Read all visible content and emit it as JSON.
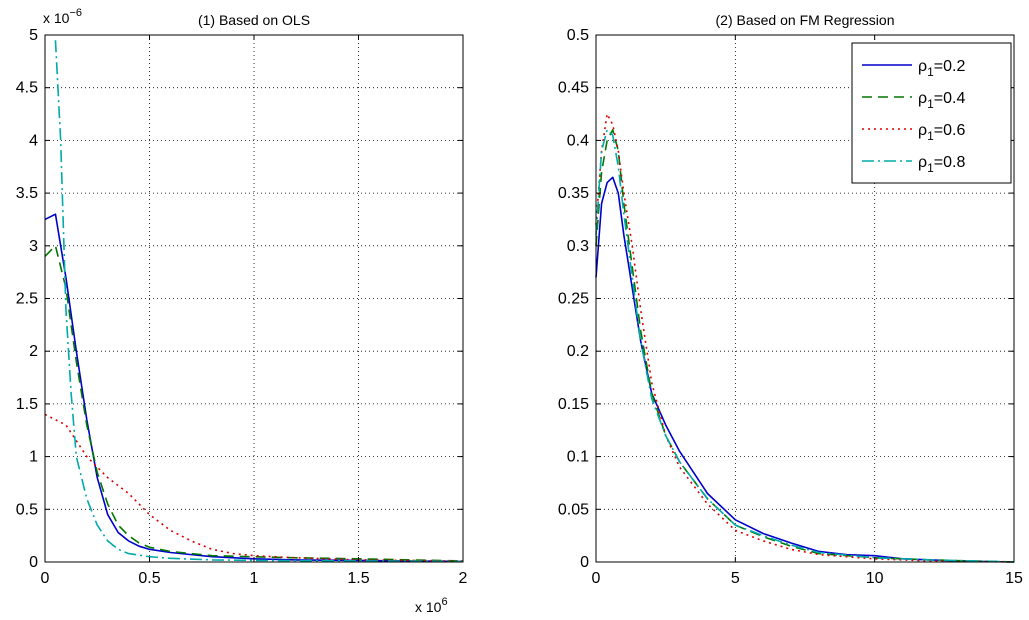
{
  "chart_data": [
    {
      "type": "line",
      "title": "(1) Based on OLS",
      "xlim": [
        0,
        2000000
      ],
      "ylim": [
        0,
        5e-06
      ],
      "x_ticks": [
        0,
        500000,
        1000000,
        1500000,
        2000000
      ],
      "x_tick_labels": [
        "0",
        "0.5",
        "1",
        "1.5",
        "2"
      ],
      "y_ticks": [
        0,
        5e-07,
        1e-06,
        1.5e-06,
        2e-06,
        2.5e-06,
        3e-06,
        3.5e-06,
        4e-06,
        4.5e-06,
        5e-06
      ],
      "y_tick_labels": [
        "0",
        "0.5",
        "1",
        "1.5",
        "2",
        "2.5",
        "3",
        "3.5",
        "4",
        "4.5",
        "5"
      ],
      "x_multiplier": {
        "base": "x 10",
        "exp": "6"
      },
      "y_multiplier": {
        "base": "x 10",
        "exp": "−6"
      },
      "grid": true,
      "series": [
        {
          "label_parts": [
            "ρ",
            "1",
            "=0.2"
          ],
          "color": "#0000cc",
          "dash": "",
          "x": [
            0,
            50000,
            100000,
            150000,
            200000,
            250000,
            300000,
            350000,
            400000,
            450000,
            500000,
            600000,
            700000,
            800000,
            1000000,
            1200000,
            1500000,
            2000000
          ],
          "y": [
            3.25e-06,
            3.3e-06,
            2.7e-06,
            2e-06,
            1.35e-06,
            8e-07,
            4.5e-07,
            2.8e-07,
            2e-07,
            1.5e-07,
            1.2e-07,
            9e-08,
            7e-08,
            5e-08,
            3e-08,
            2e-08,
            1.5e-08,
            5e-09
          ]
        },
        {
          "label_parts": [
            "ρ",
            "1",
            "=0.4"
          ],
          "color": "#007700",
          "dash": "10,6",
          "x": [
            0,
            50000,
            100000,
            150000,
            200000,
            250000,
            300000,
            350000,
            400000,
            450000,
            500000,
            600000,
            700000,
            800000,
            1000000,
            1200000,
            1500000,
            2000000
          ],
          "y": [
            2.9e-06,
            3e-06,
            2.6e-06,
            1.9e-06,
            1.3e-06,
            8.5e-07,
            5.5e-07,
            3.5e-07,
            2.5e-07,
            1.8e-07,
            1.4e-07,
            1e-07,
            8e-08,
            6e-08,
            5e-08,
            4e-08,
            3e-08,
            1e-08
          ]
        },
        {
          "label_parts": [
            "ρ",
            "1",
            "=0.6"
          ],
          "color": "#dd0000",
          "dash": "2,4",
          "x": [
            0,
            100000,
            150000,
            200000,
            300000,
            400000,
            500000,
            600000,
            700000,
            800000,
            900000,
            1000000,
            1200000,
            1500000,
            2000000
          ],
          "y": [
            1.4e-06,
            1.3e-06,
            1.15e-06,
            1e-06,
            8e-07,
            6.5e-07,
            4.5e-07,
            3e-07,
            2e-07,
            1.2e-07,
            8e-08,
            6e-08,
            4e-08,
            2e-08,
            1e-08
          ]
        },
        {
          "label_parts": [
            "ρ",
            "1",
            "=0.8"
          ],
          "color": "#00aaaa",
          "dash": "12,4,2,4",
          "x": [
            50000,
            75000,
            100000,
            125000,
            150000,
            200000,
            250000,
            300000,
            350000,
            400000,
            500000,
            600000,
            800000,
            1000000,
            1500000,
            2000000
          ],
          "y": [
            4.95e-06,
            4e-06,
            2.4e-06,
            1.6e-06,
            1e-06,
            6e-07,
            3.5e-07,
            2e-07,
            1.2e-07,
            8e-08,
            5e-08,
            3.5e-08,
            2e-08,
            1.5e-08,
            1e-08,
            5e-09
          ]
        }
      ]
    },
    {
      "type": "line",
      "title": "(2) Based on FM Regression",
      "xlim": [
        0,
        15
      ],
      "ylim": [
        0,
        0.5
      ],
      "x_ticks": [
        0,
        5,
        10,
        15
      ],
      "x_tick_labels": [
        "0",
        "5",
        "10",
        "15"
      ],
      "y_ticks": [
        0,
        0.05,
        0.1,
        0.15,
        0.2,
        0.25,
        0.3,
        0.35,
        0.4,
        0.45,
        0.5
      ],
      "y_tick_labels": [
        "0",
        "0.05",
        "0.1",
        "0.15",
        "0.2",
        "0.25",
        "0.3",
        "0.35",
        "0.4",
        "0.45",
        "0.5"
      ],
      "grid": true,
      "legend": "top-right",
      "series": [
        {
          "label_parts": [
            "ρ",
            "1",
            "=0.2"
          ],
          "color": "#0000cc",
          "dash": "",
          "x": [
            0,
            0.2,
            0.4,
            0.6,
            0.8,
            1.0,
            1.3,
            1.6,
            2.0,
            2.5,
            3.0,
            4.0,
            5.0,
            6.0,
            7.0,
            8.0,
            9.0,
            10.0,
            11.0,
            12.0,
            13.0,
            15.0
          ],
          "y": [
            0.27,
            0.34,
            0.36,
            0.365,
            0.35,
            0.31,
            0.26,
            0.21,
            0.16,
            0.13,
            0.105,
            0.065,
            0.04,
            0.027,
            0.018,
            0.01,
            0.007,
            0.006,
            0.003,
            0.002,
            0.001,
            0.0
          ]
        },
        {
          "label_parts": [
            "ρ",
            "1",
            "=0.4"
          ],
          "color": "#007700",
          "dash": "10,6",
          "x": [
            0,
            0.2,
            0.4,
            0.6,
            0.8,
            1.0,
            1.3,
            1.6,
            2.0,
            2.5,
            3.0,
            4.0,
            5.0,
            6.0,
            7.0,
            8.0,
            10.0,
            12.0,
            15.0
          ],
          "y": [
            0.3,
            0.37,
            0.4,
            0.41,
            0.39,
            0.34,
            0.28,
            0.22,
            0.16,
            0.12,
            0.095,
            0.06,
            0.035,
            0.024,
            0.015,
            0.008,
            0.004,
            0.002,
            0.0
          ]
        },
        {
          "label_parts": [
            "ρ",
            "1",
            "=0.6"
          ],
          "color": "#dd0000",
          "dash": "2,4",
          "x": [
            0,
            0.2,
            0.4,
            0.6,
            0.8,
            1.0,
            1.3,
            1.6,
            2.0,
            2.5,
            3.0,
            4.0,
            5.0,
            6.0,
            7.0,
            8.0,
            10.0,
            12.0,
            15.0
          ],
          "y": [
            0.32,
            0.39,
            0.425,
            0.415,
            0.39,
            0.35,
            0.3,
            0.24,
            0.17,
            0.12,
            0.09,
            0.055,
            0.03,
            0.02,
            0.012,
            0.007,
            0.003,
            0.001,
            0.0
          ]
        },
        {
          "label_parts": [
            "ρ",
            "1",
            "=0.8"
          ],
          "color": "#00aaaa",
          "dash": "12,4,2,4",
          "x": [
            0,
            0.2,
            0.4,
            0.6,
            0.8,
            1.0,
            1.3,
            1.6,
            2.0,
            2.5,
            3.0,
            4.0,
            5.0,
            6.0,
            7.0,
            8.0,
            10.0,
            12.0,
            15.0
          ],
          "y": [
            0.31,
            0.39,
            0.41,
            0.405,
            0.375,
            0.33,
            0.27,
            0.21,
            0.155,
            0.12,
            0.095,
            0.06,
            0.035,
            0.025,
            0.016,
            0.009,
            0.004,
            0.002,
            0.0
          ]
        }
      ]
    }
  ]
}
